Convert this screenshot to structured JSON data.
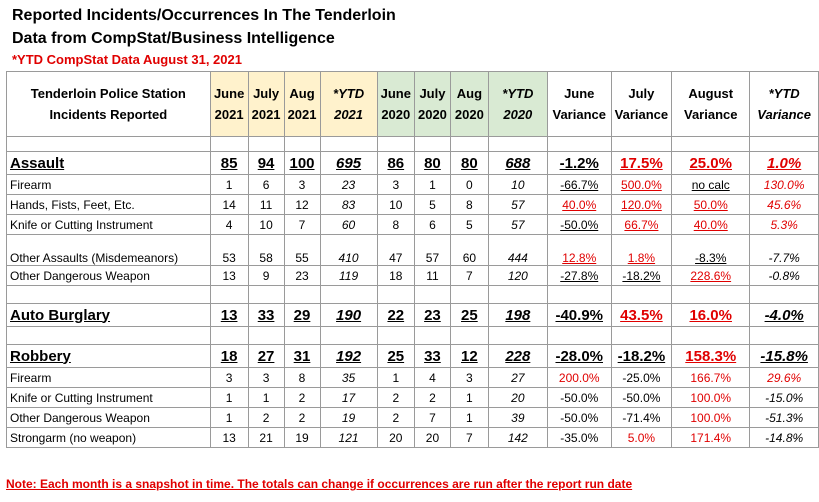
{
  "title": "Reported Incidents/Occurrences In The Tenderloin",
  "subtitle": "Data from CompStat/Business Intelligence",
  "ytd_note": "*YTD CompStat Data August 31, 2021",
  "table": {
    "header": [
      [
        "Tenderloin Police Station",
        "Incidents Reported"
      ],
      [
        "June",
        "2021"
      ],
      [
        "July",
        "2021"
      ],
      [
        "Aug",
        "2021"
      ],
      [
        "*YTD",
        "2021"
      ],
      [
        "June",
        "2020"
      ],
      [
        "July",
        "2020"
      ],
      [
        "Aug",
        "2020"
      ],
      [
        "*YTD",
        "2020"
      ],
      [
        "June",
        "Variance"
      ],
      [
        "July",
        "Variance"
      ],
      [
        "August",
        "Variance"
      ],
      [
        "*YTD",
        "Variance"
      ]
    ],
    "rows": [
      [
        "Assault",
        "85",
        "94",
        "100",
        "695",
        "86",
        "80",
        "80",
        "688",
        "-1.2%",
        "17.5%",
        "25.0%",
        "1.0%"
      ],
      [
        "Firearm",
        "1",
        "6",
        "3",
        "23",
        "3",
        "1",
        "0",
        "10",
        "-66.7%",
        "500.0%",
        "no calc",
        "130.0%"
      ],
      [
        "Hands, Fists, Feet, Etc.",
        "14",
        "11",
        "12",
        "83",
        "10",
        "5",
        "8",
        "57",
        "40.0%",
        "120.0%",
        "50.0%",
        "45.6%"
      ],
      [
        "Knife or Cutting Instrument",
        "4",
        "10",
        "7",
        "60",
        "8",
        "6",
        "5",
        "57",
        "-50.0%",
        "66.7%",
        "40.0%",
        "5.3%"
      ],
      [
        "Other Assaults (Misdemeanors)",
        "53",
        "58",
        "55",
        "410",
        "47",
        "57",
        "60",
        "444",
        "12.8%",
        "1.8%",
        "-8.3%",
        "-7.7%"
      ],
      [
        "Other Dangerous Weapon",
        "13",
        "9",
        "23",
        "119",
        "18",
        "11",
        "7",
        "120",
        "-27.8%",
        "-18.2%",
        "228.6%",
        "-0.8%"
      ],
      [
        "Auto Burglary",
        "13",
        "33",
        "29",
        "190",
        "22",
        "23",
        "25",
        "198",
        "-40.9%",
        "43.5%",
        "16.0%",
        "-4.0%"
      ],
      [
        "Robbery",
        "18",
        "27",
        "31",
        "192",
        "25",
        "33",
        "12",
        "228",
        "-28.0%",
        "-18.2%",
        "158.3%",
        "-15.8%"
      ],
      [
        "Firearm",
        "3",
        "3",
        "8",
        "35",
        "1",
        "4",
        "3",
        "27",
        "200.0%",
        "-25.0%",
        "166.7%",
        "29.6%"
      ],
      [
        "Knife or Cutting Instrument",
        "1",
        "1",
        "2",
        "17",
        "2",
        "2",
        "1",
        "20",
        "-50.0%",
        "-50.0%",
        "100.0%",
        "-15.0%"
      ],
      [
        "Other Dangerous Weapon",
        "1",
        "2",
        "2",
        "19",
        "2",
        "7",
        "1",
        "39",
        "-50.0%",
        "-71.4%",
        "100.0%",
        "-51.3%"
      ],
      [
        "Strongarm (no weapon)",
        "13",
        "21",
        "19",
        "121",
        "20",
        "20",
        "7",
        "142",
        "-35.0%",
        "5.0%",
        "171.4%",
        "-14.8%"
      ]
    ]
  },
  "footer_note": "Note: Each month is a snapshot in time. The totals can change if occurrences are run after the report run date"
}
